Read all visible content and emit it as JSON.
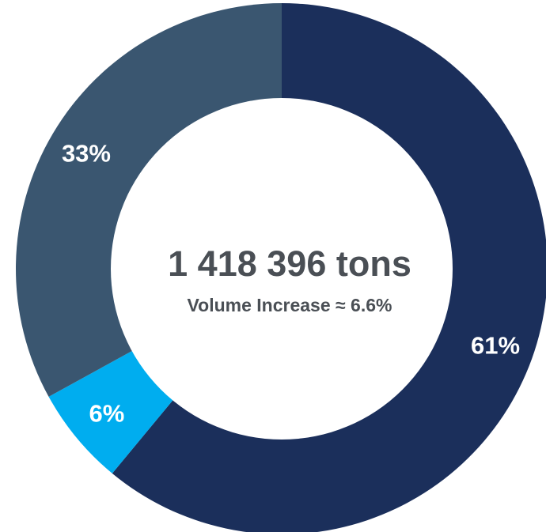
{
  "chart_data": {
    "type": "pie",
    "variant": "donut",
    "values": [
      61,
      6,
      33
    ],
    "labels": [
      "61%",
      "6%",
      "33%"
    ],
    "colors": [
      "#1b2f5b",
      "#00adef",
      "#3a5670"
    ],
    "center": {
      "title": "1 418 396 tons",
      "subtitle": "Volume Increase ≈ 6.6%"
    },
    "start": "12 o'clock",
    "direction": "clockwise"
  }
}
